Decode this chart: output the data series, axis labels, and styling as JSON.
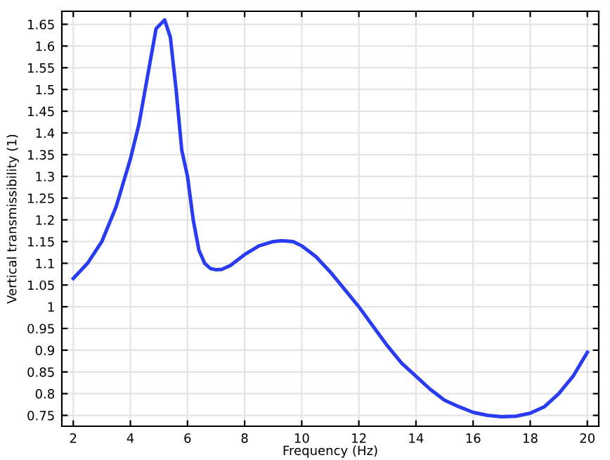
{
  "chart_data": {
    "type": "line",
    "xlabel": "Frequency (Hz)",
    "ylabel": "Vertical transmissibility (1)",
    "xlim": [
      1.6,
      20.4
    ],
    "ylim": [
      0.725,
      1.68
    ],
    "xticks": [
      2,
      4,
      6,
      8,
      10,
      12,
      14,
      16,
      18,
      20
    ],
    "yticks": [
      0.75,
      0.8,
      0.85,
      0.9,
      0.95,
      1,
      1.05,
      1.1,
      1.15,
      1.2,
      1.25,
      1.3,
      1.35,
      1.4,
      1.45,
      1.5,
      1.55,
      1.6,
      1.65
    ],
    "grid": true,
    "marker": "none",
    "line_style": "solid",
    "series": [
      {
        "color": "#2a3cf0",
        "x": [
          2,
          2.5,
          3,
          3.5,
          4,
          4.3,
          4.6,
          4.9,
          5.2,
          5.4,
          5.6,
          5.8,
          6,
          6.2,
          6.4,
          6.6,
          6.8,
          7,
          7.2,
          7.5,
          8,
          8.5,
          9,
          9.3,
          9.7,
          10,
          10.5,
          11,
          11.5,
          12,
          12.5,
          13,
          13.5,
          14,
          14.5,
          15,
          15.5,
          16,
          16.5,
          17,
          17.5,
          18,
          18.5,
          19,
          19.5,
          20
        ],
        "values": [
          1.065,
          1.1,
          1.15,
          1.23,
          1.34,
          1.42,
          1.53,
          1.64,
          1.66,
          1.62,
          1.5,
          1.36,
          1.3,
          1.2,
          1.13,
          1.1,
          1.088,
          1.085,
          1.086,
          1.095,
          1.12,
          1.14,
          1.15,
          1.152,
          1.15,
          1.14,
          1.115,
          1.08,
          1.04,
          1.0,
          0.955,
          0.91,
          0.87,
          0.84,
          0.81,
          0.785,
          0.77,
          0.757,
          0.75,
          0.747,
          0.748,
          0.755,
          0.77,
          0.8,
          0.84,
          0.895
        ]
      }
    ]
  }
}
